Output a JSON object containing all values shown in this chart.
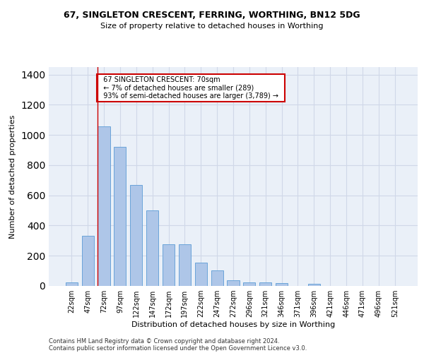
{
  "title1": "67, SINGLETON CRESCENT, FERRING, WORTHING, BN12 5DG",
  "title2": "Size of property relative to detached houses in Worthing",
  "xlabel": "Distribution of detached houses by size in Worthing",
  "ylabel": "Number of detached properties",
  "footer1": "Contains HM Land Registry data © Crown copyright and database right 2024.",
  "footer2": "Contains public sector information licensed under the Open Government Licence v3.0.",
  "bar_labels": [
    "22sqm",
    "47sqm",
    "72sqm",
    "97sqm",
    "122sqm",
    "147sqm",
    "172sqm",
    "197sqm",
    "222sqm",
    "247sqm",
    "272sqm",
    "296sqm",
    "321sqm",
    "346sqm",
    "371sqm",
    "396sqm",
    "421sqm",
    "446sqm",
    "471sqm",
    "496sqm",
    "521sqm"
  ],
  "bar_values": [
    22,
    330,
    1055,
    920,
    670,
    500,
    275,
    275,
    155,
    103,
    38,
    25,
    22,
    18,
    0,
    12,
    0,
    0,
    0,
    0,
    0
  ],
  "bar_color": "#aec6e8",
  "bar_edge_color": "#5b9bd5",
  "grid_color": "#d0d8e8",
  "background_color": "#eaf0f8",
  "annotation_text": "  67 SINGLETON CRESCENT: 70sqm  \n  ← 7% of detached houses are smaller (289)  \n  93% of semi-detached houses are larger (3,789) →  ",
  "annotation_box_color": "#ffffff",
  "annotation_box_edge": "#cc0000",
  "ylim": [
    0,
    1450
  ],
  "line_index": 2,
  "title1_fontsize": 9,
  "title2_fontsize": 8,
  "ylabel_fontsize": 8,
  "xlabel_fontsize": 8,
  "tick_fontsize": 7,
  "footer_fontsize": 6
}
